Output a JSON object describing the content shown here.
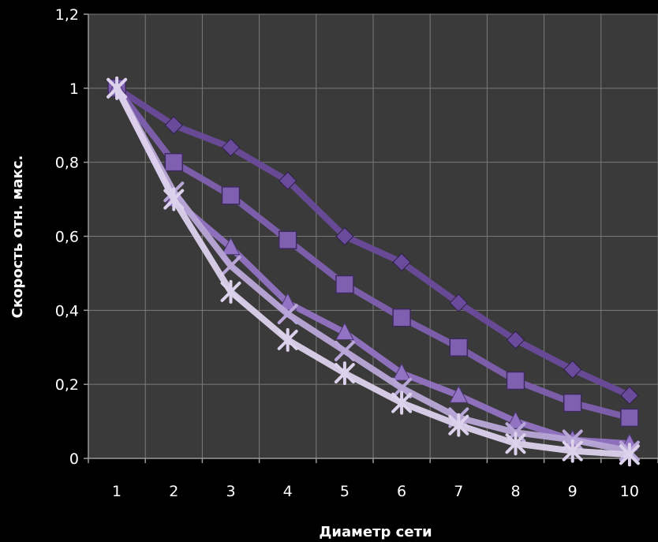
{
  "chart_data": {
    "type": "line",
    "title": "",
    "xlabel": "Диаметр сети",
    "ylabel": "Скорость отн. макс.",
    "x": [
      1,
      2,
      3,
      4,
      5,
      6,
      7,
      8,
      9,
      10
    ],
    "x_tick_labels": [
      "1",
      "2",
      "3",
      "4",
      "5",
      "6",
      "7",
      "8",
      "9",
      "10"
    ],
    "ylim": [
      0,
      1.2
    ],
    "y_ticks": [
      0,
      0.2,
      0.4,
      0.6,
      0.8,
      1,
      1.2
    ],
    "y_tick_labels": [
      "0",
      "0,2",
      "0,4",
      "0,6",
      "0,8",
      "1",
      "1,2"
    ],
    "grid": true,
    "legend": "none",
    "series": [
      {
        "marker": "diamond",
        "color": "#6a4a9a",
        "values": [
          1.0,
          0.9,
          0.84,
          0.75,
          0.6,
          0.53,
          0.42,
          0.32,
          0.24,
          0.17
        ]
      },
      {
        "marker": "square",
        "color": "#7e5fb0",
        "values": [
          1.0,
          0.8,
          0.71,
          0.59,
          0.47,
          0.38,
          0.3,
          0.21,
          0.15,
          0.11
        ]
      },
      {
        "marker": "triangle",
        "color": "#9272c2",
        "values": [
          1.0,
          0.7,
          0.57,
          0.42,
          0.34,
          0.23,
          0.17,
          0.1,
          0.05,
          0.04
        ]
      },
      {
        "marker": "x",
        "color": "#b9a6d8",
        "values": [
          1.0,
          0.72,
          0.52,
          0.39,
          0.29,
          0.19,
          0.11,
          0.07,
          0.05,
          0.02
        ]
      },
      {
        "marker": "star",
        "color": "#dcd2ec",
        "values": [
          1.0,
          0.7,
          0.45,
          0.32,
          0.23,
          0.15,
          0.09,
          0.04,
          0.02,
          0.01
        ]
      }
    ]
  }
}
